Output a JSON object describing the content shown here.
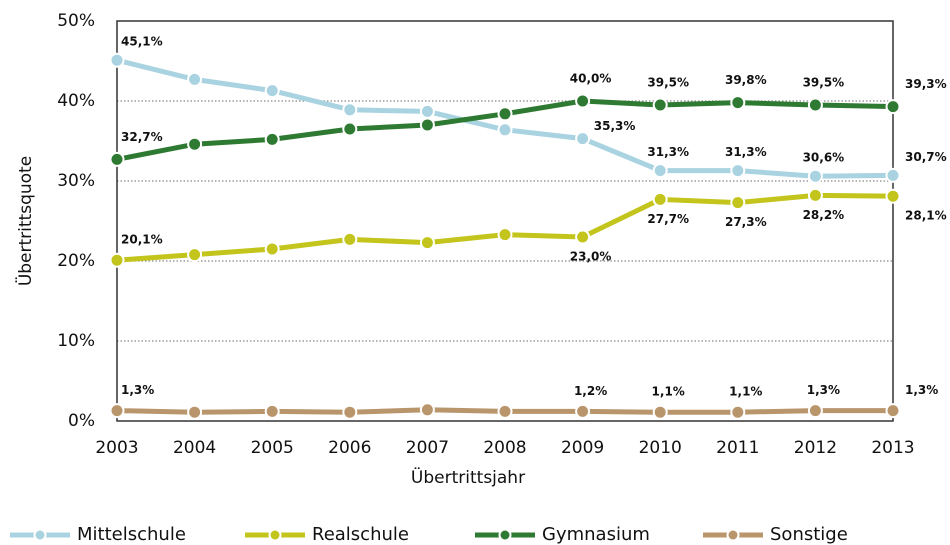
{
  "chart_data": {
    "type": "line",
    "x_label": "Übertrittsjahr",
    "y_label": "Übertrittsquote",
    "categories": [
      "2003",
      "2004",
      "2005",
      "2006",
      "2007",
      "2008",
      "2009",
      "2010",
      "2011",
      "2012",
      "2013"
    ],
    "series": [
      {
        "name": "Mittelschule",
        "color": "#a9d3e1",
        "values": [
          45.1,
          42.7,
          41.3,
          38.9,
          38.7,
          36.4,
          35.3,
          31.3,
          31.3,
          30.6,
          30.7
        ],
        "value_labels": [
          "45,1%",
          null,
          null,
          null,
          null,
          null,
          "35,3%",
          "31,3%",
          "31,3%",
          "30,6%",
          "30,7%"
        ]
      },
      {
        "name": "Realschule",
        "color": "#c3c41c",
        "values": [
          20.1,
          20.8,
          21.5,
          22.7,
          22.3,
          23.3,
          23.0,
          27.7,
          27.3,
          28.2,
          28.1
        ],
        "value_labels": [
          "20,1%",
          null,
          null,
          null,
          null,
          null,
          "23,0%",
          "27,7%",
          "27,3%",
          "28,2%",
          "28,1%"
        ]
      },
      {
        "name": "Gymnasium",
        "color": "#2f7a32",
        "values": [
          32.7,
          34.6,
          35.2,
          36.5,
          37.0,
          38.4,
          40.0,
          39.5,
          39.8,
          39.5,
          39.3
        ],
        "value_labels": [
          "32,7%",
          null,
          null,
          null,
          null,
          null,
          "40,0%",
          "39,5%",
          "39,8%",
          "39,5%",
          "39,3%"
        ]
      },
      {
        "name": "Sonstige",
        "color": "#b9956b",
        "values": [
          1.3,
          1.1,
          1.2,
          1.1,
          1.4,
          1.2,
          1.2,
          1.1,
          1.1,
          1.3,
          1.3
        ],
        "value_labels": [
          "1,3%",
          null,
          null,
          null,
          null,
          null,
          "1,2%",
          "1,1%",
          "1,1%",
          "1,3%",
          "1,3%"
        ]
      }
    ],
    "ylim": [
      0,
      50
    ],
    "yticks": [
      {
        "value": 0,
        "label": "0%"
      },
      {
        "value": 10,
        "label": "10%"
      },
      {
        "value": 20,
        "label": "20%"
      },
      {
        "value": 30,
        "label": "30%"
      },
      {
        "value": 40,
        "label": "40%"
      },
      {
        "value": 50,
        "label": "50%"
      }
    ],
    "grid": true,
    "legend": "bottom"
  }
}
